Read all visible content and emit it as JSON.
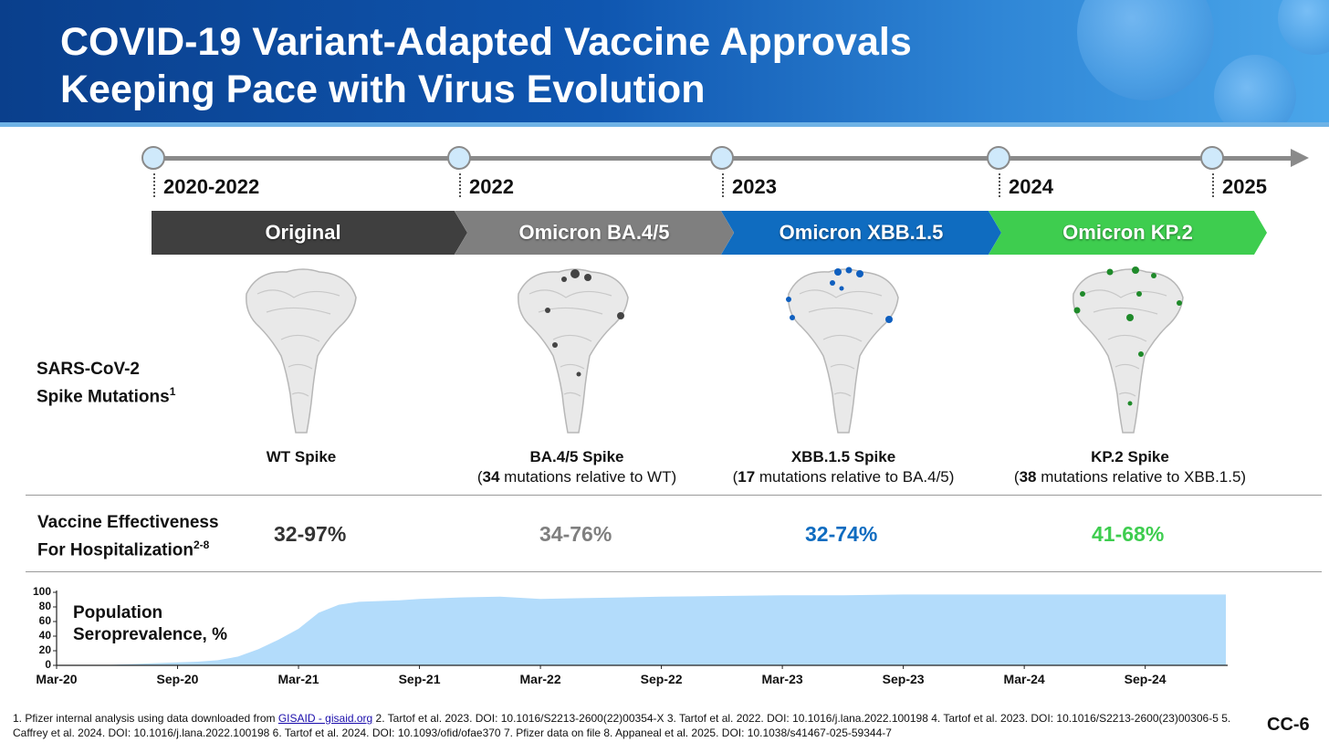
{
  "slide": {
    "title_line1": "COVID-19 Variant-Adapted Vaccine Approvals",
    "title_line2": "Keeping Pace with Virus Evolution",
    "slide_id": "CC-6"
  },
  "timeline": {
    "years": [
      "2020-2022",
      "2022",
      "2023",
      "2024",
      "2025"
    ]
  },
  "variants": [
    {
      "label": "Original",
      "color": "#3f3f3f"
    },
    {
      "label": "Omicron BA.4/5",
      "color": "#7f7f7f"
    },
    {
      "label": "Omicron XBB.1.5",
      "color": "#0f6cc0"
    },
    {
      "label": "Omicron KP.2",
      "color": "#3ecd4f"
    }
  ],
  "spike_row": {
    "label_line1": "SARS-CoV-2",
    "label_line2": "Spike Mutations",
    "label_sup": "1",
    "captions": [
      {
        "name": "WT Spike",
        "count": "",
        "rest": ""
      },
      {
        "name": "BA.4/5 Spike",
        "count": "34",
        "rest": " mutations relative to WT)"
      },
      {
        "name": "XBB.1.5 Spike",
        "count": "17",
        "rest": " mutations relative to BA.4/5)"
      },
      {
        "name": "KP.2 Spike",
        "count": "38",
        "rest": " mutations relative to XBB.1.5)"
      }
    ],
    "highlight_colors": [
      "#ffffff",
      "#444444",
      "#0f5fbf",
      "#1f8a2a"
    ]
  },
  "effectiveness": {
    "label_line1": "Vaccine Effectiveness",
    "label_line2": "For Hospitalization",
    "label_sup": "2-8",
    "values": [
      {
        "text": "32-97%",
        "color": "#333333"
      },
      {
        "text": "34-76%",
        "color": "#7f7f7f"
      },
      {
        "text": "32-74%",
        "color": "#0f6cc0"
      },
      {
        "text": "41-68%",
        "color": "#3ecd4f"
      }
    ]
  },
  "chart_data": {
    "type": "area",
    "title": "Population Seroprevalence, %",
    "title_line1": "Population",
    "title_line2": "Seroprevalence, %",
    "xlabel": "",
    "ylabel": "",
    "ylim": [
      0,
      100
    ],
    "yticks": [
      0,
      20,
      40,
      60,
      80,
      100
    ],
    "xtick_labels": [
      "Mar-20",
      "Sep-20",
      "Mar-21",
      "Sep-21",
      "Mar-22",
      "Sep-22",
      "Mar-23",
      "Sep-23",
      "Mar-24",
      "Sep-24"
    ],
    "x_range": [
      "Mar-20",
      "Jan-25"
    ],
    "color": "#b3dcfb",
    "series": [
      {
        "x": [
          "Mar-20",
          "May-20",
          "Jul-20",
          "Sep-20",
          "Oct-20",
          "Nov-20",
          "Dec-20",
          "Jan-21",
          "Feb-21",
          "Mar-21",
          "Apr-21",
          "May-21",
          "Jun-21",
          "Aug-21",
          "Sep-21",
          "Nov-21",
          "Jan-22",
          "Mar-22",
          "May-22",
          "Jul-22",
          "Sep-22",
          "Dec-22",
          "Mar-23",
          "Jun-23",
          "Sep-23",
          "Dec-23",
          "Mar-24",
          "Jun-24",
          "Sep-24",
          "Jan-25"
        ],
        "values": [
          0,
          0,
          2,
          4,
          5,
          7,
          12,
          22,
          35,
          50,
          72,
          83,
          87,
          89,
          91,
          93,
          94,
          91,
          92,
          93,
          94,
          95,
          96,
          96,
          97,
          97,
          97,
          97,
          97,
          97
        ]
      }
    ]
  },
  "footnote": {
    "prefix": "1. Pfizer internal analysis using data downloaded from ",
    "link": "GISAID - gisaid.org",
    "rest": " 2. Tartof et al. 2023. DOI: 10.1016/S2213-2600(22)00354-X 3. Tartof et al. 2022. DOI: 10.1016/j.lana.2022.100198 4. Tartof et al. 2023. DOI: 10.1016/S2213-2600(23)00306-5 5. Caffrey et al. 2024. DOI: 10.1016/j.lana.2022.100198 6. Tartof et al. 2024. DOI: 10.1093/ofid/ofae370 7. Pfizer data on file 8. Appaneal et al. 2025. DOI: 10.1038/s41467-025-59344-7"
  }
}
